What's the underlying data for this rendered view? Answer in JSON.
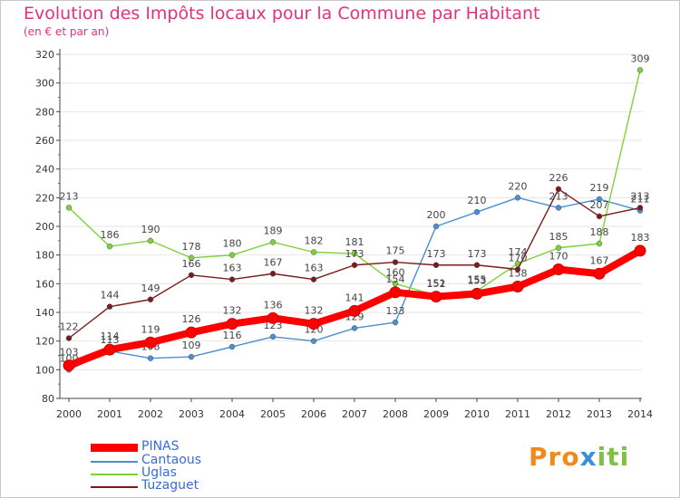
{
  "header": {
    "title": "Evolution des Impôts locaux pour la Commune par Habitant",
    "subtitle": "(en € et par an)"
  },
  "logo": {
    "text": "Proxiti"
  },
  "colors": {
    "title": "#e0337a",
    "axis": "#444444",
    "grid": "#e6e6e6",
    "legend_text": "#3a6cd1"
  },
  "chart_data": {
    "type": "line",
    "title": "Evolution des Impôts locaux pour la Commune par Habitant",
    "subtitle": "(en € et par an)",
    "x": [
      "2000",
      "2001",
      "2002",
      "2003",
      "2004",
      "2005",
      "2006",
      "2007",
      "2008",
      "2009",
      "2010",
      "2011",
      "2012",
      "2013",
      "2014"
    ],
    "ylim": [
      80,
      320
    ],
    "yticks": [
      80,
      100,
      120,
      140,
      160,
      180,
      200,
      220,
      240,
      260,
      280,
      300,
      320
    ],
    "grid": true,
    "legend_position": "bottom-left",
    "series": [
      {
        "name": "Cantaous",
        "color": "#4a8fd1",
        "values": [
          100,
          113,
          108,
          109,
          116,
          123,
          120,
          129,
          133,
          200,
          210,
          220,
          213,
          219,
          211
        ]
      },
      {
        "name": "Uglas",
        "color": "#7fd13b",
        "values": [
          213,
          186,
          190,
          178,
          180,
          189,
          182,
          181,
          160,
          152,
          155,
          174,
          185,
          188,
          309
        ]
      },
      {
        "name": "Tuzaguet",
        "color": "#7a1c1c",
        "values": [
          122,
          144,
          149,
          166,
          163,
          167,
          163,
          173,
          175,
          173,
          173,
          170,
          226,
          207,
          213
        ]
      },
      {
        "name": "PINAS",
        "color": "#ff0000",
        "values": [
          103,
          114,
          119,
          126,
          132,
          136,
          132,
          141,
          154,
          151,
          153,
          158,
          170,
          167,
          183
        ]
      }
    ]
  },
  "legend": [
    {
      "name": "PINAS",
      "color": "#ff0000"
    },
    {
      "name": "Cantaous",
      "color": "#4a8fd1"
    },
    {
      "name": "Uglas",
      "color": "#7fd13b"
    },
    {
      "name": "Tuzaguet",
      "color": "#7a1c1c"
    }
  ]
}
